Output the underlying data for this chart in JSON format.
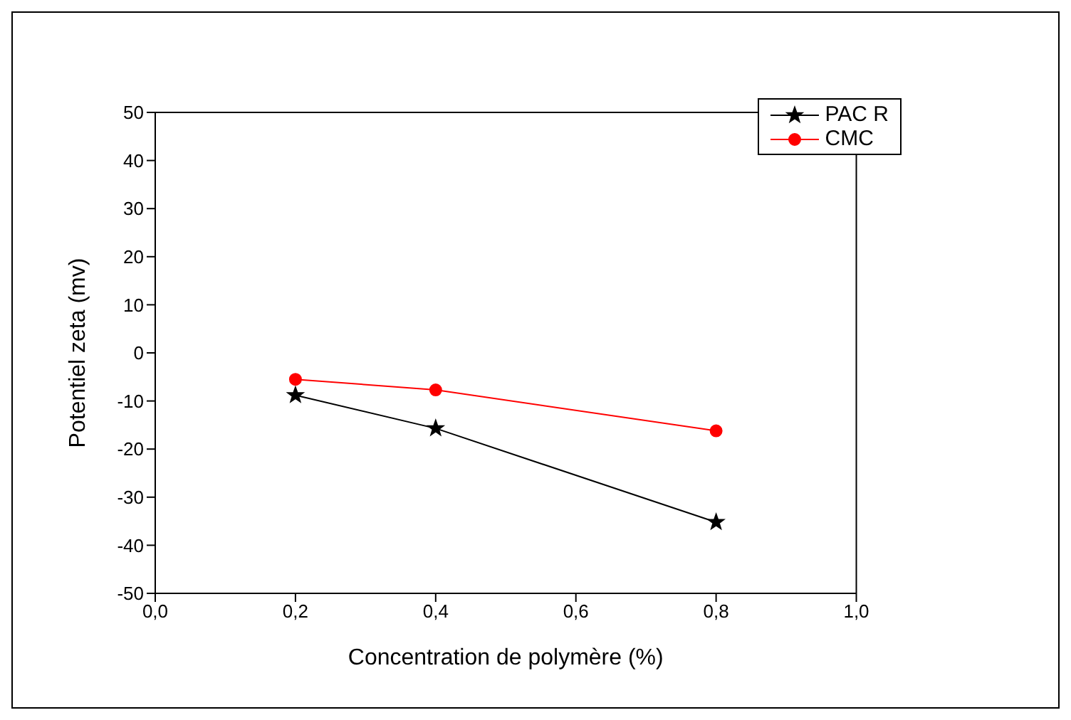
{
  "chart_data": {
    "type": "line",
    "xlabel": "Concentration de polymère (%)",
    "ylabel": "Potentiel zeta (mv)",
    "xlim": [
      0,
      1
    ],
    "xticks": [
      {
        "value": 0,
        "label": "0,0"
      },
      {
        "value": 0.2,
        "label": "0,2"
      },
      {
        "value": 0.4,
        "label": "0,4"
      },
      {
        "value": 0.6,
        "label": "0,6"
      },
      {
        "value": 0.8,
        "label": "0,8"
      },
      {
        "value": 1,
        "label": "1,0"
      }
    ],
    "ylim": [
      -50,
      50
    ],
    "yticks": [
      -50,
      -40,
      -30,
      -20,
      -10,
      0,
      10,
      20,
      30,
      40,
      50
    ],
    "grid": false,
    "legend": "top right",
    "series": [
      {
        "name": "PAC R",
        "color": "#000000",
        "marker": "star",
        "x": [
          0.2,
          0.4,
          0.8
        ],
        "values": [
          -8.8,
          -15.7,
          -35.2
        ]
      },
      {
        "name": "CMC",
        "color": "#ff0000",
        "marker": "circle",
        "x": [
          0.2,
          0.4,
          0.8
        ],
        "values": [
          -5.5,
          -7.7,
          -16.2
        ]
      }
    ]
  }
}
